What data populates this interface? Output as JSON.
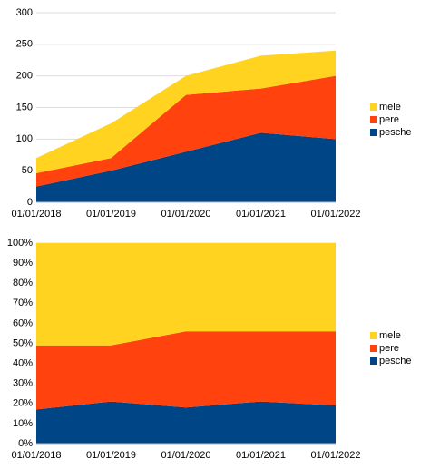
{
  "chart_data": [
    {
      "type": "stacked_area",
      "categories": [
        "01/01/2018",
        "01/01/2019",
        "01/01/2020",
        "01/01/2021",
        "01/01/2022"
      ],
      "series": [
        {
          "name": "mele",
          "color": "#ffd320",
          "values": [
            24,
            55,
            30,
            52,
            40
          ]
        },
        {
          "name": "pere",
          "color": "#ff420e",
          "values": [
            21,
            20,
            90,
            70,
            100
          ]
        },
        {
          "name": "pesche",
          "color": "#004586",
          "values": [
            25,
            50,
            80,
            110,
            100
          ]
        }
      ],
      "ylim": [
        0,
        300
      ],
      "yticks": [
        0,
        50,
        100,
        150,
        200,
        250,
        300
      ],
      "grid": true,
      "legend": "right"
    },
    {
      "type": "stacked_area",
      "categories": [
        "01/01/2018",
        "01/01/2019",
        "01/01/2020",
        "01/01/2021",
        "01/01/2022"
      ],
      "series": [
        {
          "name": "mele",
          "color": "#ffd320",
          "values": [
            51,
            51,
            44,
            44,
            44
          ]
        },
        {
          "name": "pere",
          "color": "#ff420e",
          "values": [
            32,
            28,
            38,
            35,
            37
          ]
        },
        {
          "name": "pesche",
          "color": "#004586",
          "values": [
            17,
            21,
            18,
            21,
            19
          ]
        }
      ],
      "ylim": [
        0,
        100
      ],
      "yticks": [
        {
          "value": 0,
          "label": "0%"
        },
        {
          "value": 10,
          "label": "10%"
        },
        {
          "value": 20,
          "label": "20%"
        },
        {
          "value": 30,
          "label": "30%"
        },
        {
          "value": 40,
          "label": "40%"
        },
        {
          "value": 50,
          "label": "50%"
        },
        {
          "value": 60,
          "label": "60%"
        },
        {
          "value": 70,
          "label": "70%"
        },
        {
          "value": 80,
          "label": "80%"
        },
        {
          "value": 90,
          "label": "90%"
        },
        {
          "value": 100,
          "label": "100%"
        }
      ],
      "grid": true,
      "legend": "right"
    }
  ]
}
